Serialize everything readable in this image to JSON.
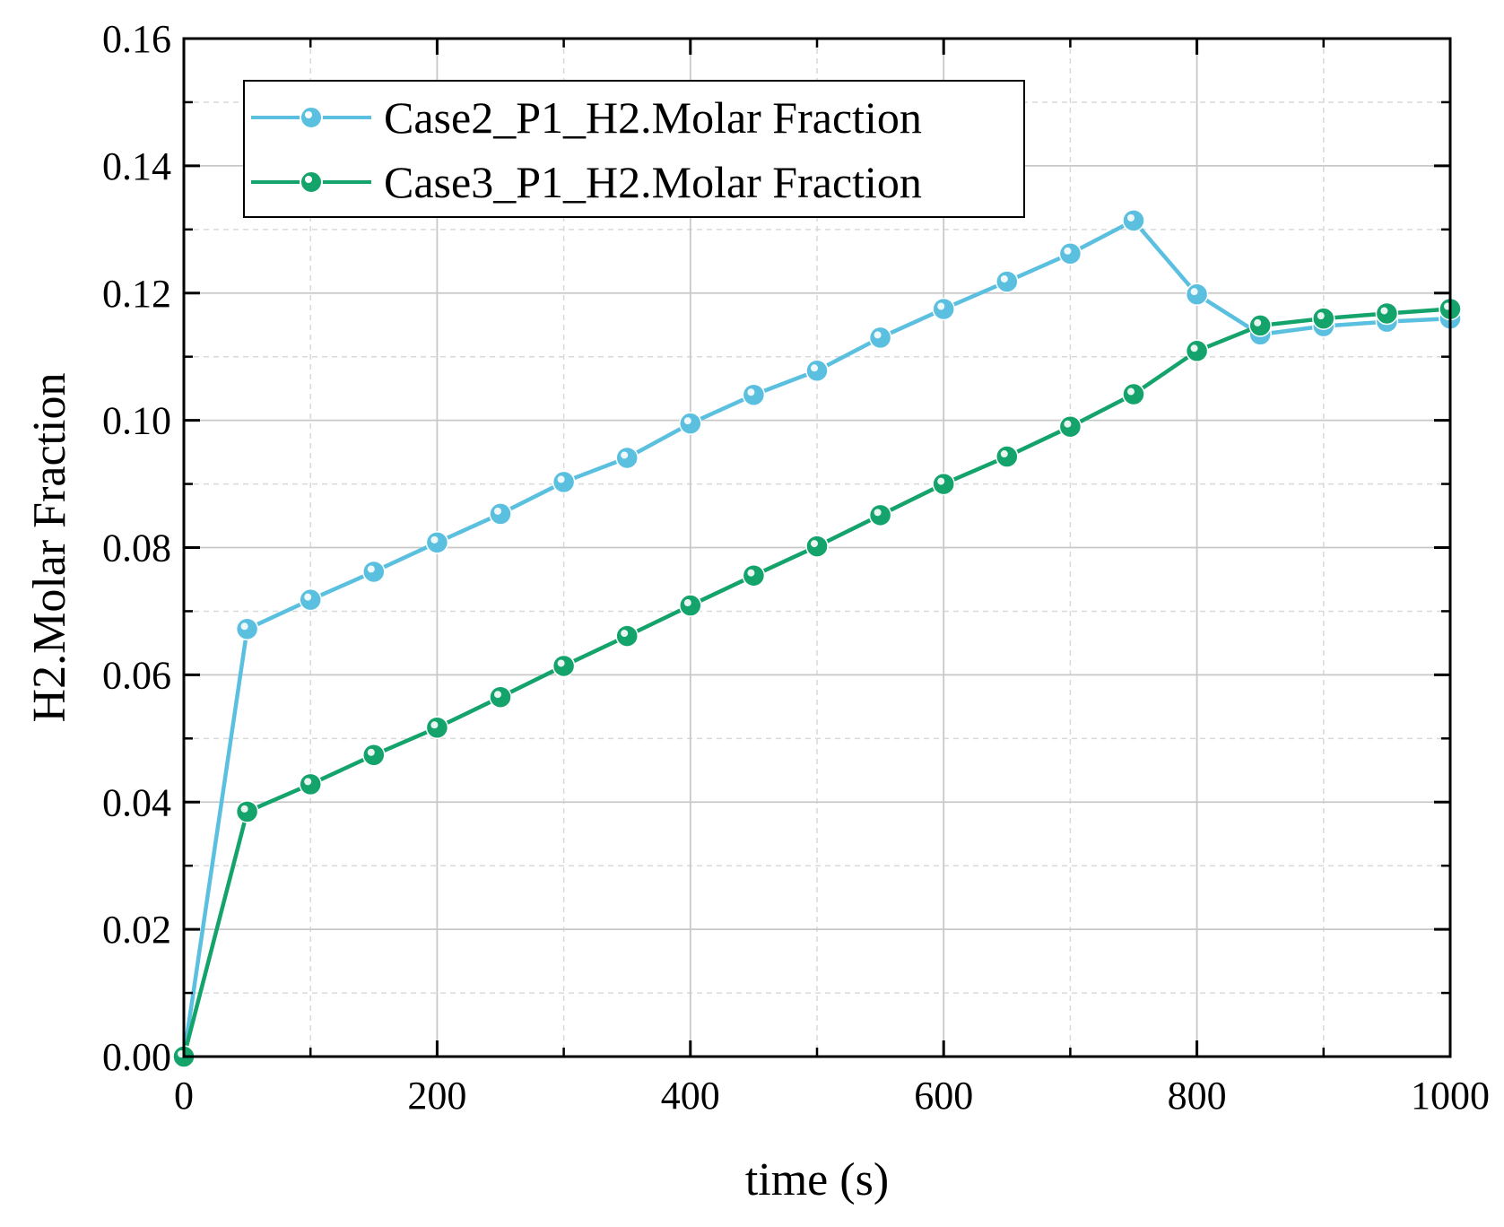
{
  "chart_data": {
    "type": "line",
    "title": "",
    "xlabel": "time (s)",
    "ylabel": "H2.Molar Fraction",
    "xlim": [
      0,
      1000
    ],
    "ylim": [
      0,
      0.16
    ],
    "xticks": [
      "0",
      "200",
      "400",
      "600",
      "800",
      "1000"
    ],
    "xtick_values": [
      0,
      200,
      400,
      600,
      800,
      1000
    ],
    "yticks": [
      "0.00",
      "0.02",
      "0.04",
      "0.06",
      "0.08",
      "0.10",
      "0.12",
      "0.14",
      "0.16"
    ],
    "ytick_values": [
      0,
      0.02,
      0.04,
      0.06,
      0.08,
      0.1,
      0.12,
      0.14,
      0.16
    ],
    "grid": true,
    "legend_position": "top-left",
    "x": [
      0,
      50,
      100,
      150,
      200,
      250,
      300,
      350,
      400,
      450,
      500,
      550,
      600,
      650,
      700,
      750,
      800,
      850,
      900,
      950,
      1000
    ],
    "series": [
      {
        "name": "Case2_P1_H2.Molar Fraction",
        "color": "#5bc0e0",
        "values": [
          0.0,
          0.0672,
          0.0718,
          0.0762,
          0.0808,
          0.0853,
          0.0903,
          0.0941,
          0.0995,
          0.104,
          0.1078,
          0.113,
          0.1175,
          0.1218,
          0.1262,
          0.1314,
          0.1198,
          0.1135,
          0.1148,
          0.1155,
          0.116
        ]
      },
      {
        "name": "Case3_P1_H2.Molar Fraction",
        "color": "#13a36b",
        "values": [
          0.0,
          0.0385,
          0.0428,
          0.0474,
          0.0517,
          0.0565,
          0.0614,
          0.0661,
          0.0709,
          0.0756,
          0.0802,
          0.0851,
          0.09,
          0.0943,
          0.099,
          0.1041,
          0.1109,
          0.1149,
          0.116,
          0.1168,
          0.1175
        ]
      }
    ]
  }
}
